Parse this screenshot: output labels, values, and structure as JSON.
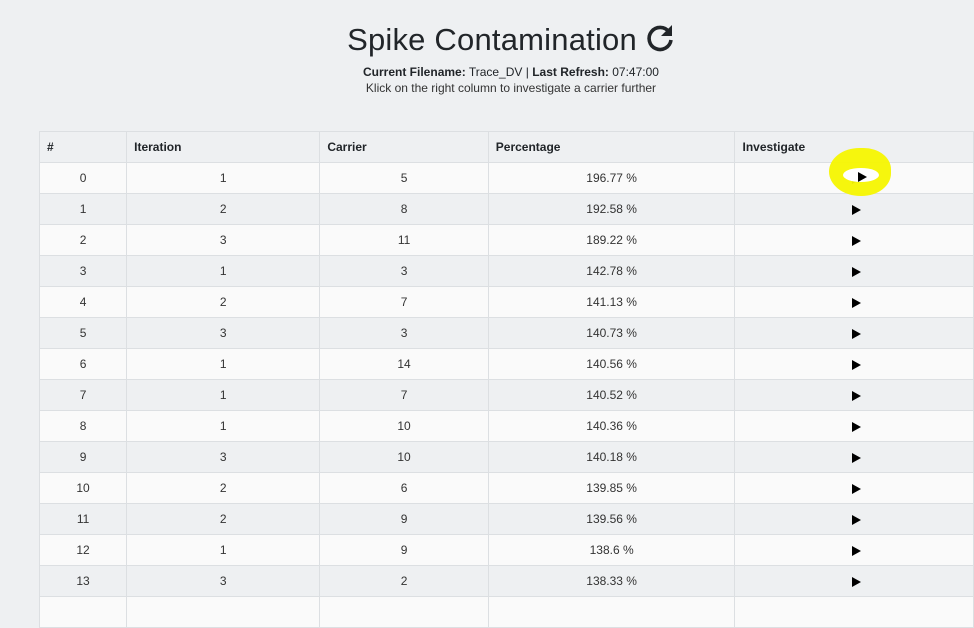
{
  "header": {
    "title": "Spike Contamination",
    "refresh_icon": "refresh-icon",
    "filename_label": "Current Filename:",
    "filename_value": "Trace_DV",
    "separator": "|",
    "refresh_label": "Last Refresh:",
    "refresh_value": "07:47:00",
    "hint": "Klick on the right column to investigate a carrier further"
  },
  "table": {
    "columns": [
      "#",
      "Iteration",
      "Carrier",
      "Percentage",
      "Investigate"
    ],
    "investigate_icon": "play-icon",
    "rows": [
      {
        "idx": "0",
        "iteration": "1",
        "carrier": "5",
        "percentage": "196.77 %"
      },
      {
        "idx": "1",
        "iteration": "2",
        "carrier": "8",
        "percentage": "192.58 %"
      },
      {
        "idx": "2",
        "iteration": "3",
        "carrier": "11",
        "percentage": "189.22 %"
      },
      {
        "idx": "3",
        "iteration": "1",
        "carrier": "3",
        "percentage": "142.78 %"
      },
      {
        "idx": "4",
        "iteration": "2",
        "carrier": "7",
        "percentage": "141.13 %"
      },
      {
        "idx": "5",
        "iteration": "3",
        "carrier": "3",
        "percentage": "140.73 %"
      },
      {
        "idx": "6",
        "iteration": "1",
        "carrier": "14",
        "percentage": "140.56 %"
      },
      {
        "idx": "7",
        "iteration": "1",
        "carrier": "7",
        "percentage": "140.52 %"
      },
      {
        "idx": "8",
        "iteration": "1",
        "carrier": "10",
        "percentage": "140.36 %"
      },
      {
        "idx": "9",
        "iteration": "3",
        "carrier": "10",
        "percentage": "140.18 %"
      },
      {
        "idx": "10",
        "iteration": "2",
        "carrier": "6",
        "percentage": "139.85 %"
      },
      {
        "idx": "11",
        "iteration": "2",
        "carrier": "9",
        "percentage": "139.56 %"
      },
      {
        "idx": "12",
        "iteration": "1",
        "carrier": "9",
        "percentage": "138.6 %"
      },
      {
        "idx": "13",
        "iteration": "3",
        "carrier": "2",
        "percentage": "138.33 %"
      },
      {
        "idx": "",
        "iteration": "",
        "carrier": "",
        "percentage": ""
      }
    ]
  },
  "annotation": {
    "highlight_color": "#f5f500"
  }
}
